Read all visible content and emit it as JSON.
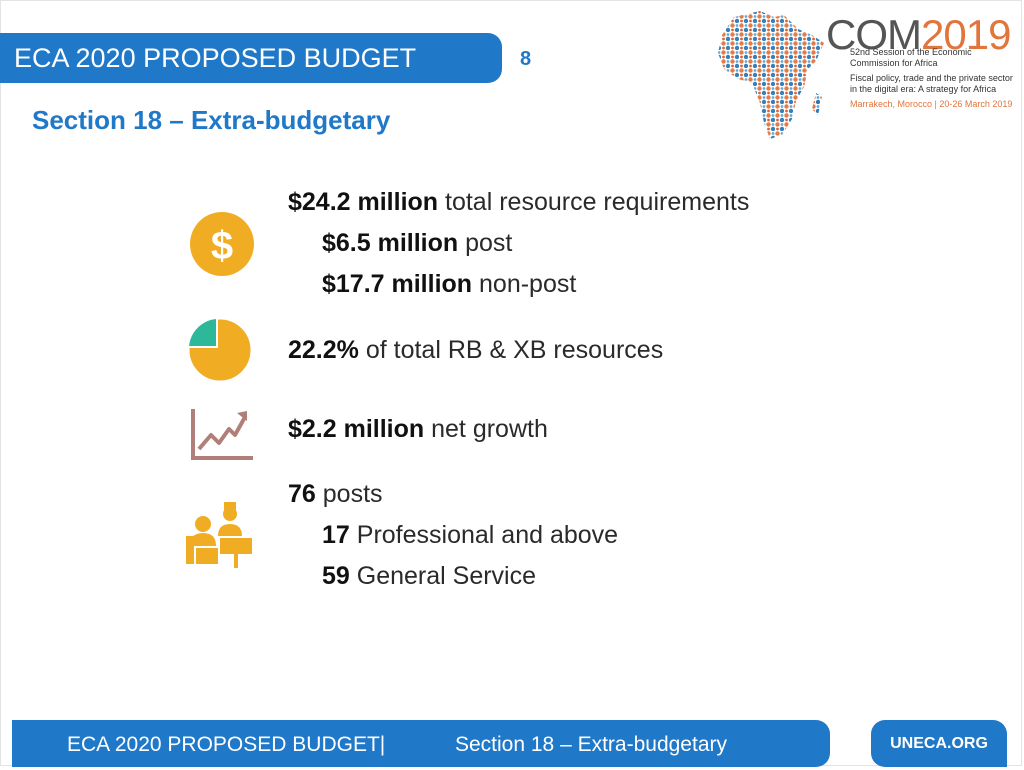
{
  "header": {
    "title": "ECA 2020 PROPOSED BUDGET",
    "page_number": "8",
    "section": "Section 18 – Extra-budgetary"
  },
  "logo": {
    "com": "COM",
    "year": "2019",
    "session": "52nd Session of the Economic Commission for Africa",
    "theme": "Fiscal policy, trade and the private sector in the digital era: A strategy for Africa",
    "location": "Marrakech, Morocco | 20-26 March 2019"
  },
  "resources": {
    "total_value": "$24.2 million",
    "total_label": "total resource requirements",
    "post_value": "$6.5 million",
    "post_label": "post",
    "nonpost_value": "$17.7 million",
    "nonpost_label": "non-post"
  },
  "share": {
    "value": "22.2%",
    "label": "of total RB & XB resources"
  },
  "growth": {
    "value": "$2.2 million",
    "label": "net growth"
  },
  "posts": {
    "total_value": "76",
    "total_label": "posts",
    "professional_value": "17",
    "professional_label": "Professional and above",
    "general_value": "59",
    "general_label": "General Service"
  },
  "footer": {
    "left": "ECA 2020 PROPOSED BUDGET|",
    "right": "Section 18 – Extra-budgetary",
    "site": "UNECA.ORG"
  },
  "icons": {
    "dollar": "dollar-coin-icon",
    "pie": "pie-chart-icon",
    "growth": "growth-chart-icon",
    "staff": "staff-icon"
  },
  "colors": {
    "brand_blue": "#1f78c8",
    "icon_gold": "#f0ad23",
    "pie_teal": "#2db89a",
    "growth_brown": "#b07f7a"
  }
}
